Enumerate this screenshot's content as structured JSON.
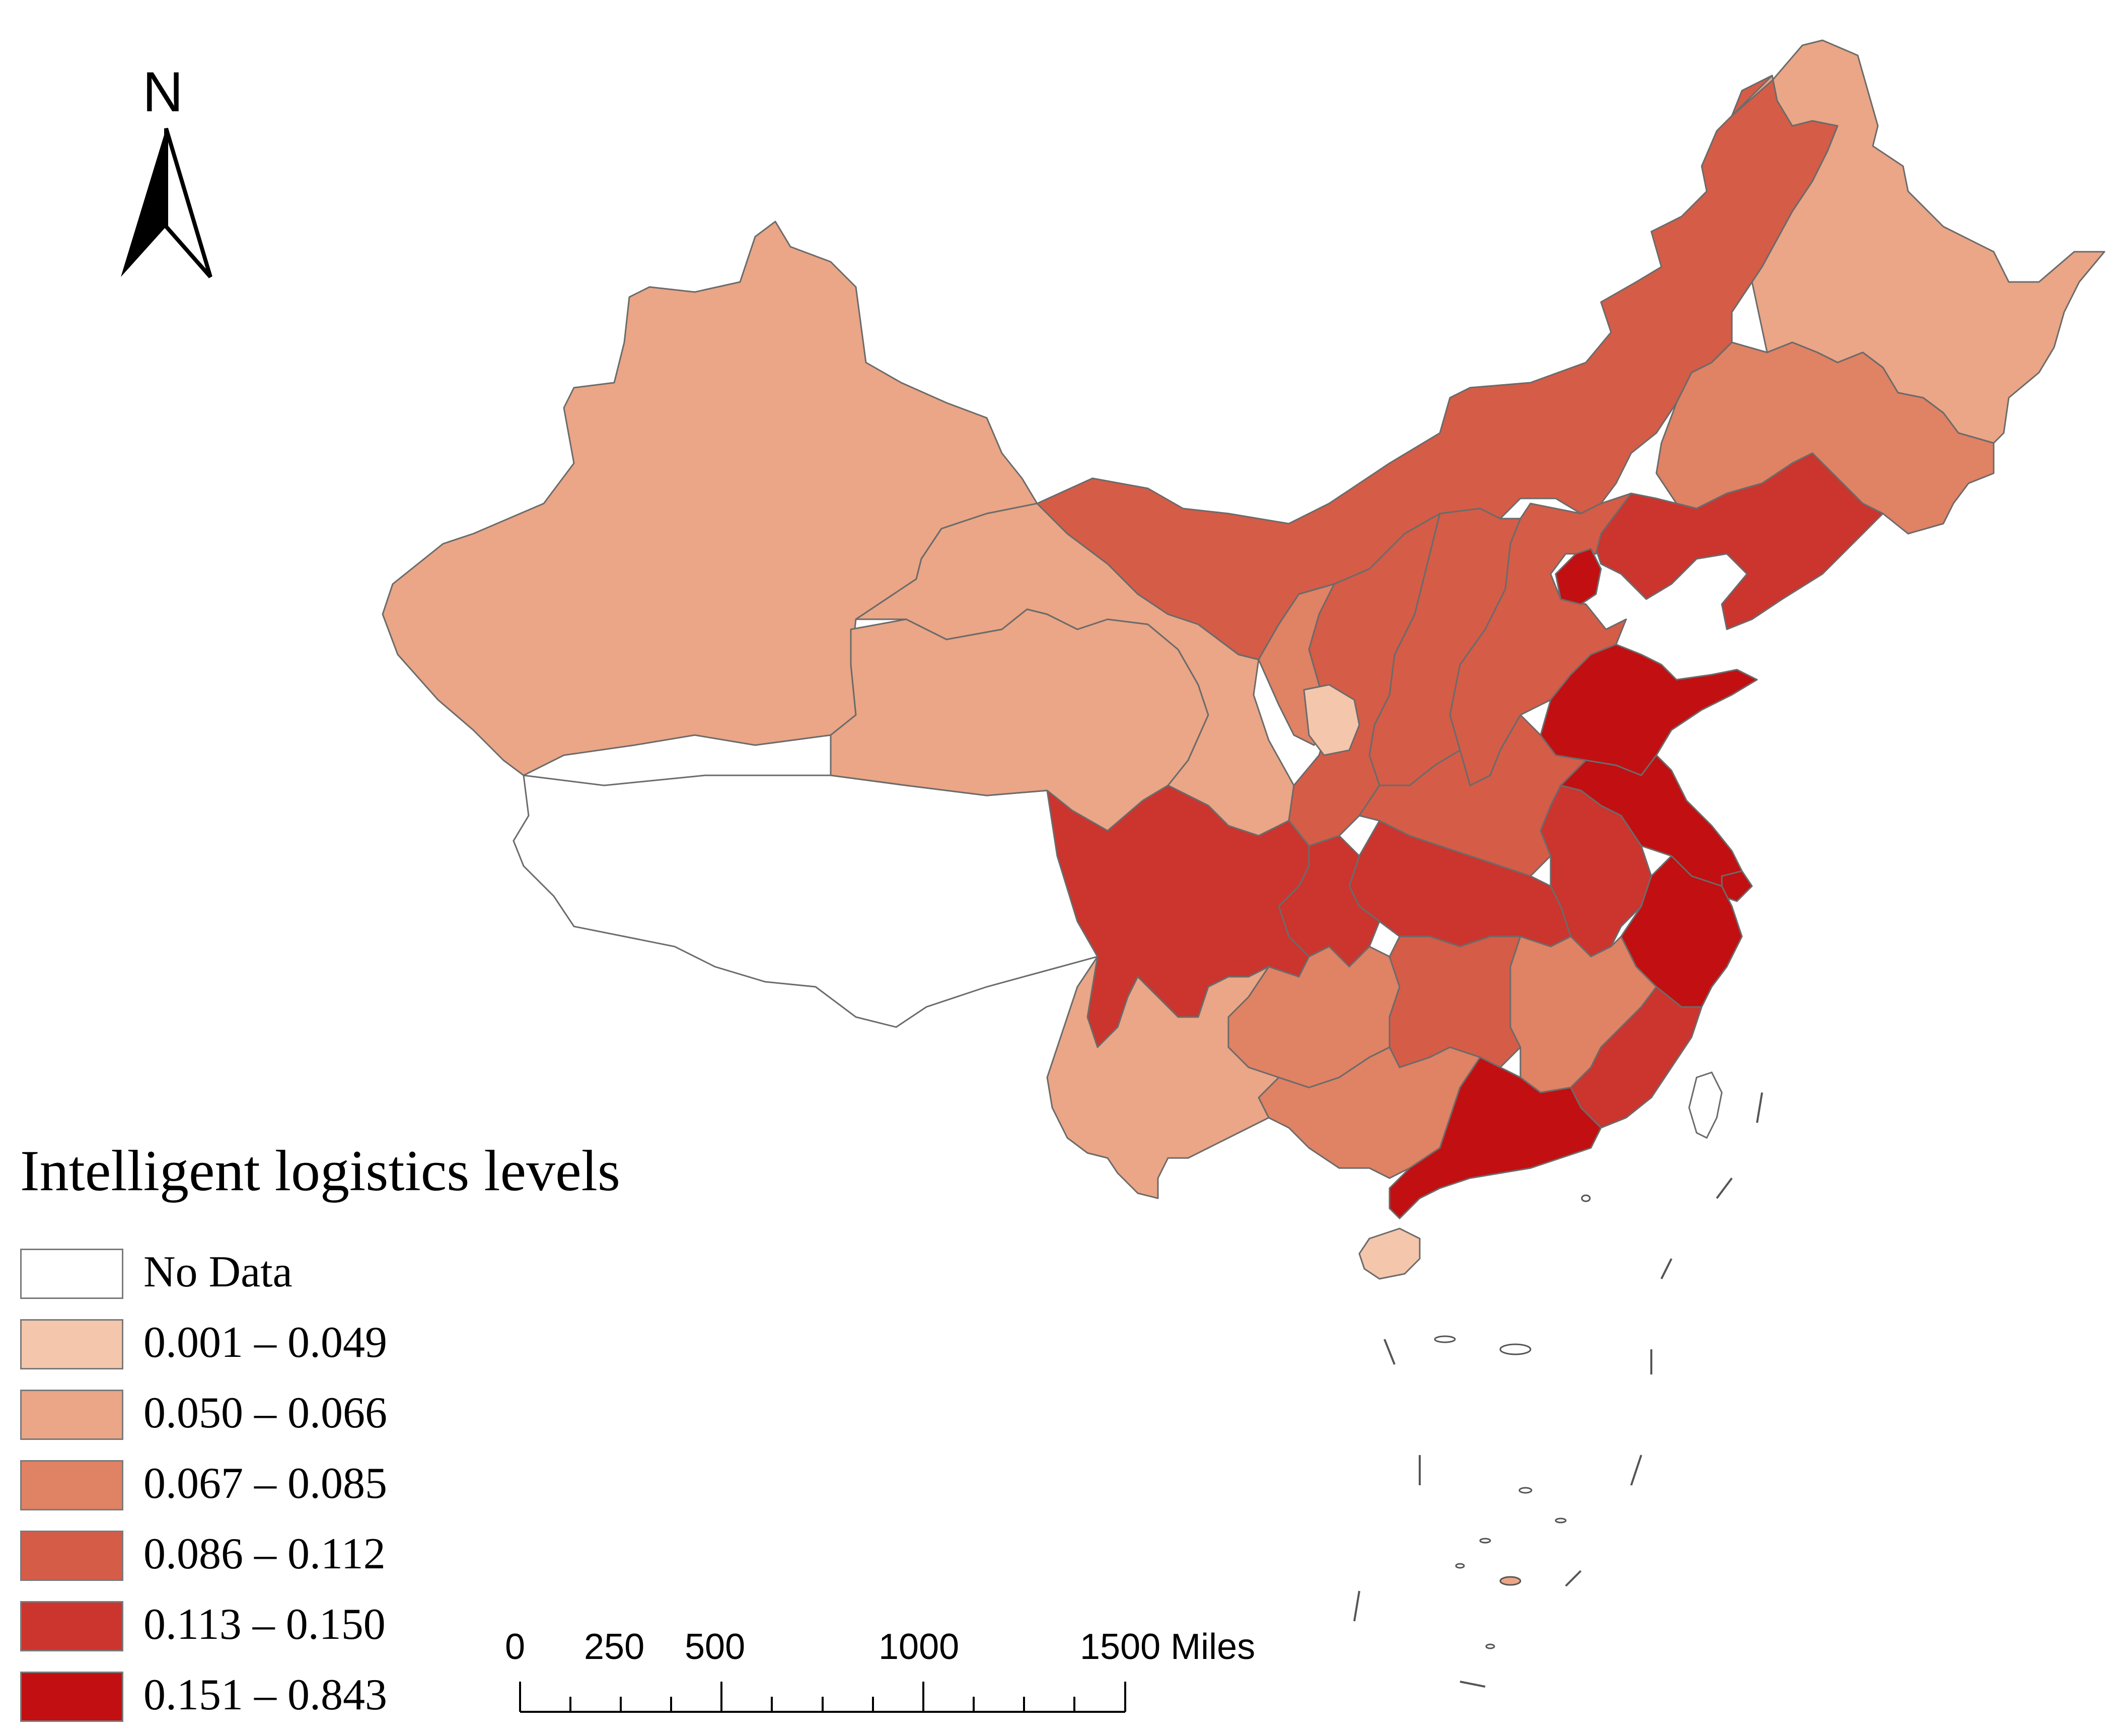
{
  "north_arrow": {
    "label": "N",
    "icon": "north-arrow-icon"
  },
  "legend": {
    "title": "Intelligent logistics levels",
    "items": [
      {
        "label": "No Data",
        "color": "#ffffff"
      },
      {
        "label": "0.001 – 0.049",
        "color": "#f4c6ab"
      },
      {
        "label": "0.050 – 0.066",
        "color": "#eaa686"
      },
      {
        "label": "0.067 – 0.085",
        "color": "#e08264"
      },
      {
        "label": "0.086 – 0.112",
        "color": "#d55c47"
      },
      {
        "label": "0.113 – 0.150",
        "color": "#cc342e"
      },
      {
        "label": "0.151 – 0.843",
        "color": "#c20f11"
      }
    ]
  },
  "scale_bar": {
    "ticks": [
      "0",
      "250",
      "500",
      "1000",
      "1500 Miles"
    ]
  },
  "regions": [
    {
      "name": "Xinjiang",
      "class": "0.050 – 0.066"
    },
    {
      "name": "Tibet",
      "class": "No Data"
    },
    {
      "name": "Qinghai",
      "class": "0.050 – 0.066"
    },
    {
      "name": "Gansu",
      "class": "0.050 – 0.066"
    },
    {
      "name": "Inner Mongolia",
      "class": "0.086 – 0.112"
    },
    {
      "name": "Heilongjiang",
      "class": "0.050 – 0.066"
    },
    {
      "name": "Jilin",
      "class": "0.067 – 0.085"
    },
    {
      "name": "Liaoning",
      "class": "0.113 – 0.150"
    },
    {
      "name": "Beijing",
      "class": "0.151 – 0.843"
    },
    {
      "name": "Hebei",
      "class": "0.086 – 0.112"
    },
    {
      "name": "Shanxi",
      "class": "0.086 – 0.112"
    },
    {
      "name": "Shaanxi",
      "class": "0.086 – 0.112"
    },
    {
      "name": "Ningxia",
      "class": "0.067 – 0.085"
    },
    {
      "name": "Shandong",
      "class": "0.151 – 0.843"
    },
    {
      "name": "Henan",
      "class": "0.086 – 0.112"
    },
    {
      "name": "Jiangsu",
      "class": "0.151 – 0.843"
    },
    {
      "name": "Anhui",
      "class": "0.113 – 0.150"
    },
    {
      "name": "Shanghai",
      "class": "0.151 – 0.843"
    },
    {
      "name": "Zhejiang",
      "class": "0.151 – 0.843"
    },
    {
      "name": "Hubei",
      "class": "0.113 – 0.150"
    },
    {
      "name": "Sichuan",
      "class": "0.113 – 0.150"
    },
    {
      "name": "Chongqing",
      "class": "0.113 – 0.150"
    },
    {
      "name": "Hunan",
      "class": "0.086 – 0.112"
    },
    {
      "name": "Jiangxi",
      "class": "0.067 – 0.085"
    },
    {
      "name": "Fujian",
      "class": "0.113 – 0.150"
    },
    {
      "name": "Guangdong",
      "class": "0.151 – 0.843"
    },
    {
      "name": "Guangxi",
      "class": "0.067 – 0.085"
    },
    {
      "name": "Guizhou",
      "class": "0.067 – 0.085"
    },
    {
      "name": "Yunnan",
      "class": "0.050 – 0.066"
    },
    {
      "name": "Hainan",
      "class": "0.001 – 0.049"
    },
    {
      "name": "Taiwan",
      "class": "No Data"
    }
  ]
}
